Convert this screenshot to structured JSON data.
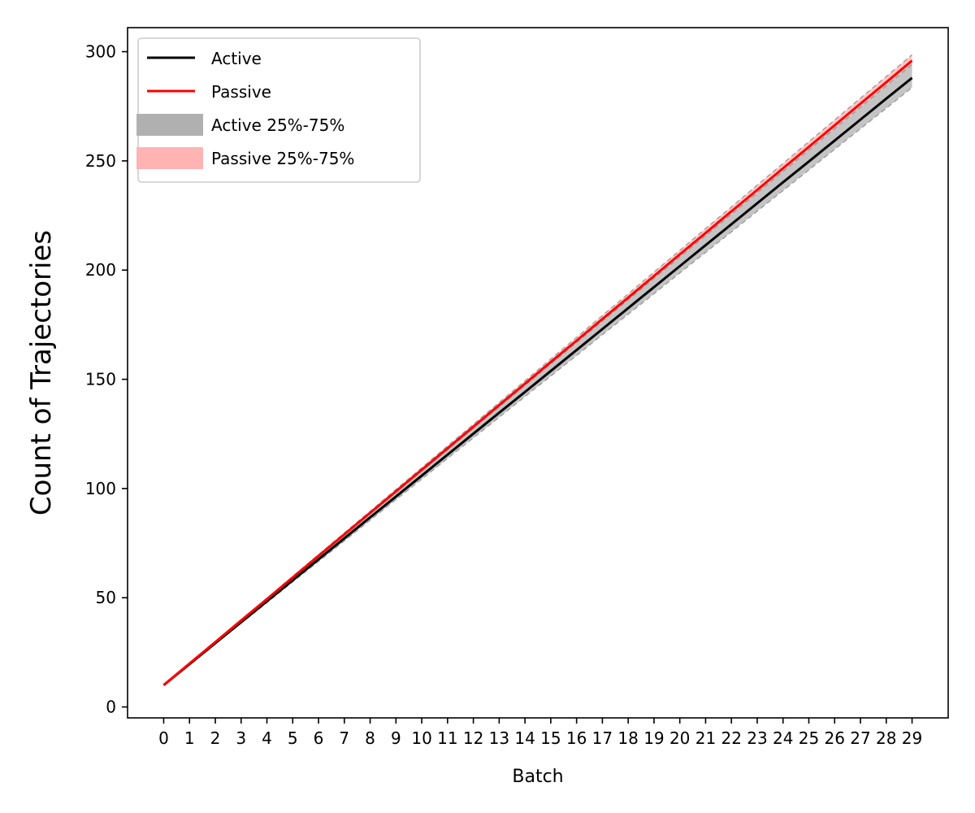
{
  "chart_data": {
    "type": "line",
    "title": "",
    "xlabel": "Batch",
    "ylabel": "Count of Trajectories",
    "x": [
      0,
      1,
      2,
      3,
      4,
      5,
      6,
      7,
      8,
      9,
      10,
      11,
      12,
      13,
      14,
      15,
      16,
      17,
      18,
      19,
      20,
      21,
      22,
      23,
      24,
      25,
      26,
      27,
      28,
      29
    ],
    "xlim": [
      -1.4,
      30.4
    ],
    "ylim": [
      -5,
      311
    ],
    "yticks": [
      0,
      50,
      100,
      150,
      200,
      250,
      300
    ],
    "grid": false,
    "legend_placement": "top-left",
    "series": [
      {
        "name": "Active",
        "kind": "line",
        "color": "#000000",
        "values": [
          10,
          19.6,
          29.2,
          38.8,
          48.4,
          58,
          67.6,
          77.2,
          86.8,
          96.3,
          105.9,
          115.5,
          125.1,
          134.7,
          144.2,
          153.8,
          163.4,
          173,
          182.6,
          192.2,
          201.8,
          211.4,
          221,
          230.6,
          240.2,
          249.7,
          259.3,
          268.9,
          278.5,
          288
        ]
      },
      {
        "name": "Passive",
        "kind": "line",
        "color": "#ff0000",
        "values": [
          10,
          19.9,
          29.7,
          39.6,
          49.4,
          59.3,
          69.2,
          79,
          88.9,
          98.7,
          108.6,
          118.4,
          128.3,
          138.2,
          148,
          157.9,
          167.7,
          177.6,
          187.4,
          197.3,
          207.2,
          217,
          226.9,
          236.7,
          246.6,
          256.4,
          266.3,
          276.2,
          286,
          295.9
        ]
      },
      {
        "name": "Active 25%-75%",
        "kind": "band",
        "color": "#b0b0b0",
        "lower": [
          10,
          19.4,
          28.9,
          38.3,
          47.7,
          57.2,
          66.6,
          76,
          85.5,
          94.9,
          104.3,
          113.8,
          123.2,
          132.6,
          142.1,
          151.5,
          160.9,
          170.4,
          179.8,
          189.2,
          198.7,
          208.1,
          217.5,
          227,
          236.4,
          245.8,
          255.3,
          264.7,
          274.1,
          283.6
        ],
        "upper": [
          10,
          19.8,
          29.6,
          39.4,
          49.2,
          59,
          68.8,
          78.6,
          88.4,
          98.2,
          108,
          117.8,
          127.6,
          137.4,
          147.2,
          157,
          166.8,
          176.6,
          186.4,
          196.2,
          206,
          215.8,
          225.6,
          235.4,
          245.2,
          255,
          264.8,
          274.6,
          284.4,
          294.2
        ]
      },
      {
        "name": "Passive 25%-75%",
        "kind": "band",
        "color": "#ffb3b3",
        "lower": [
          10,
          19.8,
          29.6,
          39.4,
          49.2,
          59,
          68.8,
          78.6,
          88.4,
          98.2,
          108,
          117.8,
          127.6,
          137.4,
          147.2,
          157,
          166.8,
          176.6,
          186.4,
          196.2,
          206,
          215.8,
          225.6,
          235.4,
          245.2,
          255,
          264.8,
          274.6,
          284.4,
          294.2
        ],
        "upper": [
          10,
          20,
          29.9,
          39.9,
          49.8,
          59.8,
          69.7,
          79.7,
          89.6,
          99.6,
          109.5,
          119.5,
          129.4,
          139.4,
          149.3,
          159.3,
          169.2,
          179.2,
          189.1,
          199.1,
          209,
          219,
          228.9,
          238.9,
          248.8,
          258.8,
          268.7,
          278.7,
          288.6,
          298.6
        ]
      }
    ]
  }
}
